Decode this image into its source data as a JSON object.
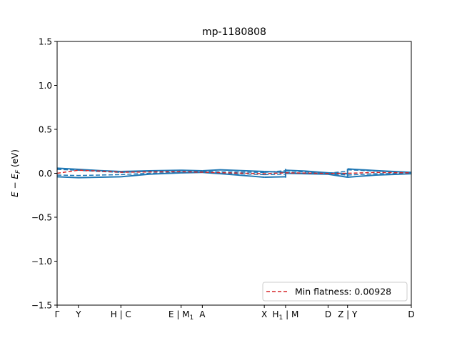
{
  "chart_data": {
    "type": "line",
    "title": "mp-1180808",
    "ylabel_parts": {
      "main": "E",
      "minus": " − ",
      "sub_base": "E",
      "sub": "F",
      "unit": " (eV)"
    },
    "xlabel": "",
    "ylim": [
      -1.5,
      1.5
    ],
    "y_ticks": [
      -1.5,
      -1.0,
      -0.5,
      0.0,
      0.5,
      1.0,
      1.5
    ],
    "y_tick_labels": [
      "−1.5",
      "−1.0",
      "−0.5",
      "0.0",
      "0.5",
      "1.0",
      "1.5"
    ],
    "xlim": [
      0,
      10
    ],
    "x_ticks": [
      {
        "x": 0.0,
        "label": "Γ"
      },
      {
        "x": 0.6,
        "label": "Y"
      },
      {
        "x": 1.8,
        "label": "H | C"
      },
      {
        "x": 3.5,
        "label": "E | M",
        "sub": "1"
      },
      {
        "x": 4.1,
        "label": "A"
      },
      {
        "x": 5.85,
        "label": "X"
      },
      {
        "x": 6.45,
        "label": "H",
        "sub": "1",
        "suffix": " | M"
      },
      {
        "x": 7.65,
        "label": "D"
      },
      {
        "x": 8.2,
        "label": "Z | Y"
      },
      {
        "x": 10.0,
        "label": "D"
      }
    ],
    "grid": false,
    "legend": {
      "location": "lower-right",
      "entries": [
        {
          "label": "Min flatness: 0.00928",
          "color": "#d62728",
          "style": "dashed"
        }
      ]
    },
    "colors": {
      "bands": "#1f77b4",
      "flat": "#d62728"
    },
    "series": [
      {
        "style": "solid",
        "segments": [
          {
            "x": [
              0.0,
              0.6,
              1.2,
              1.8
            ],
            "y": [
              0.058,
              0.045,
              0.03,
              0.02
            ]
          },
          {
            "x": [
              1.8,
              2.6,
              3.5
            ],
            "y": [
              0.02,
              0.028,
              0.035
            ]
          },
          {
            "x": [
              3.5,
              4.1
            ],
            "y": [
              0.035,
              0.028
            ]
          },
          {
            "x": [
              4.1,
              4.6,
              5.2,
              5.85
            ],
            "y": [
              0.028,
              0.04,
              0.03,
              0.02
            ]
          },
          {
            "x": [
              5.85,
              6.45
            ],
            "y": [
              0.02,
              0.012
            ]
          },
          {
            "x": [
              6.45,
              7.0,
              7.65
            ],
            "y": [
              0.035,
              0.025,
              0.005
            ]
          },
          {
            "x": [
              7.65,
              8.2
            ],
            "y": [
              0.005,
              -0.005
            ]
          },
          {
            "x": [
              8.2,
              9.0,
              10.0
            ],
            "y": [
              0.05,
              0.03,
              0.01
            ]
          }
        ]
      },
      {
        "style": "solid",
        "segments": [
          {
            "x": [
              0.0,
              0.6,
              1.2,
              1.8
            ],
            "y": [
              -0.04,
              -0.05,
              -0.045,
              -0.04
            ]
          },
          {
            "x": [
              1.8,
              2.6,
              3.5
            ],
            "y": [
              -0.04,
              -0.01,
              0.005
            ]
          },
          {
            "x": [
              3.5,
              4.1
            ],
            "y": [
              0.005,
              0.01
            ]
          },
          {
            "x": [
              4.1,
              4.8,
              5.4,
              5.85
            ],
            "y": [
              0.01,
              -0.01,
              -0.03,
              -0.045
            ]
          },
          {
            "x": [
              5.85,
              6.45
            ],
            "y": [
              -0.045,
              -0.04
            ]
          },
          {
            "x": [
              6.45,
              7.0,
              7.65
            ],
            "y": [
              0.0,
              -0.005,
              -0.01
            ]
          },
          {
            "x": [
              7.65,
              8.2
            ],
            "y": [
              -0.01,
              -0.045
            ]
          },
          {
            "x": [
              8.2,
              9.0,
              10.0
            ],
            "y": [
              -0.045,
              -0.02,
              -0.005
            ]
          }
        ]
      },
      {
        "style": "dashed",
        "segments": [
          {
            "x": [
              0.0,
              0.6,
              1.2,
              1.8
            ],
            "y": [
              0.045,
              0.035,
              0.02,
              0.01
            ]
          },
          {
            "x": [
              1.8,
              2.6,
              3.5
            ],
            "y": [
              0.01,
              0.022,
              0.03
            ]
          },
          {
            "x": [
              3.5,
              4.1
            ],
            "y": [
              0.03,
              0.02
            ]
          },
          {
            "x": [
              4.1,
              4.8,
              5.85
            ],
            "y": [
              0.02,
              0.015,
              0.01
            ]
          },
          {
            "x": [
              5.85,
              6.45
            ],
            "y": [
              0.01,
              0.03
            ]
          },
          {
            "x": [
              6.45,
              7.0,
              7.65
            ],
            "y": [
              0.03,
              0.015,
              0.0
            ]
          },
          {
            "x": [
              7.65,
              8.2
            ],
            "y": [
              0.0,
              0.025
            ]
          },
          {
            "x": [
              8.2,
              9.0,
              10.0
            ],
            "y": [
              0.04,
              0.025,
              0.005
            ]
          }
        ]
      },
      {
        "style": "dashed",
        "segments": [
          {
            "x": [
              0.0,
              0.6,
              1.2,
              1.8
            ],
            "y": [
              -0.02,
              -0.025,
              -0.02,
              -0.015
            ]
          },
          {
            "x": [
              1.8,
              2.6,
              3.5
            ],
            "y": [
              -0.015,
              0.0,
              0.01
            ]
          },
          {
            "x": [
              3.5,
              4.1
            ],
            "y": [
              0.01,
              0.015
            ]
          },
          {
            "x": [
              4.1,
              4.8,
              5.85
            ],
            "y": [
              0.015,
              0.0,
              -0.015
            ]
          },
          {
            "x": [
              5.85,
              6.45
            ],
            "y": [
              -0.015,
              -0.01
            ]
          },
          {
            "x": [
              6.45,
              7.0,
              7.65
            ],
            "y": [
              0.01,
              0.0,
              -0.005
            ]
          },
          {
            "x": [
              7.65,
              8.2
            ],
            "y": [
              -0.005,
              -0.02
            ]
          },
          {
            "x": [
              8.2,
              9.0,
              10.0
            ],
            "y": [
              -0.02,
              -0.005,
              0.0
            ]
          }
        ]
      }
    ],
    "flat_band": {
      "x": [
        0.0,
        0.6,
        1.2,
        1.8,
        2.6,
        3.5,
        4.1,
        4.8,
        5.85,
        6.45,
        7.0,
        7.65,
        8.2,
        9.0,
        10.0
      ],
      "y": [
        0.0,
        0.035,
        0.025,
        0.012,
        0.015,
        0.018,
        0.012,
        0.005,
        -0.005,
        0.005,
        0.003,
        -0.002,
        0.0,
        0.01,
        0.005
      ]
    }
  }
}
